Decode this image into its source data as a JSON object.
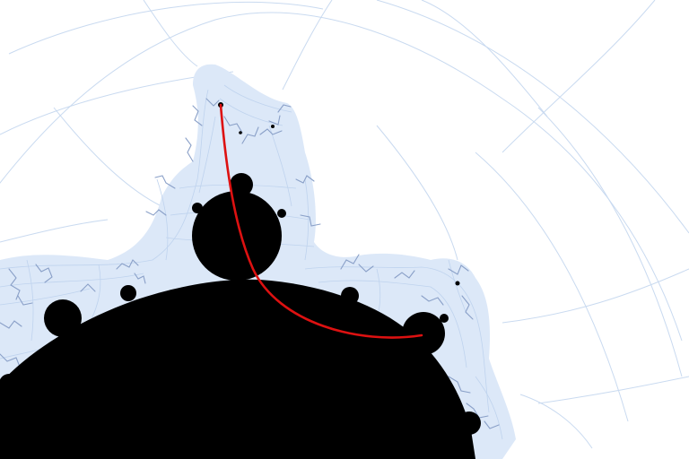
{
  "image": {
    "subject": "mandelbrot-set-detail",
    "colors": {
      "background": "#ffffff",
      "set": "#000000",
      "grid_lines": "#c9daf0",
      "halo": "#dce8f8",
      "filaments": "#8aa0c8",
      "path": "#dd1111"
    }
  }
}
